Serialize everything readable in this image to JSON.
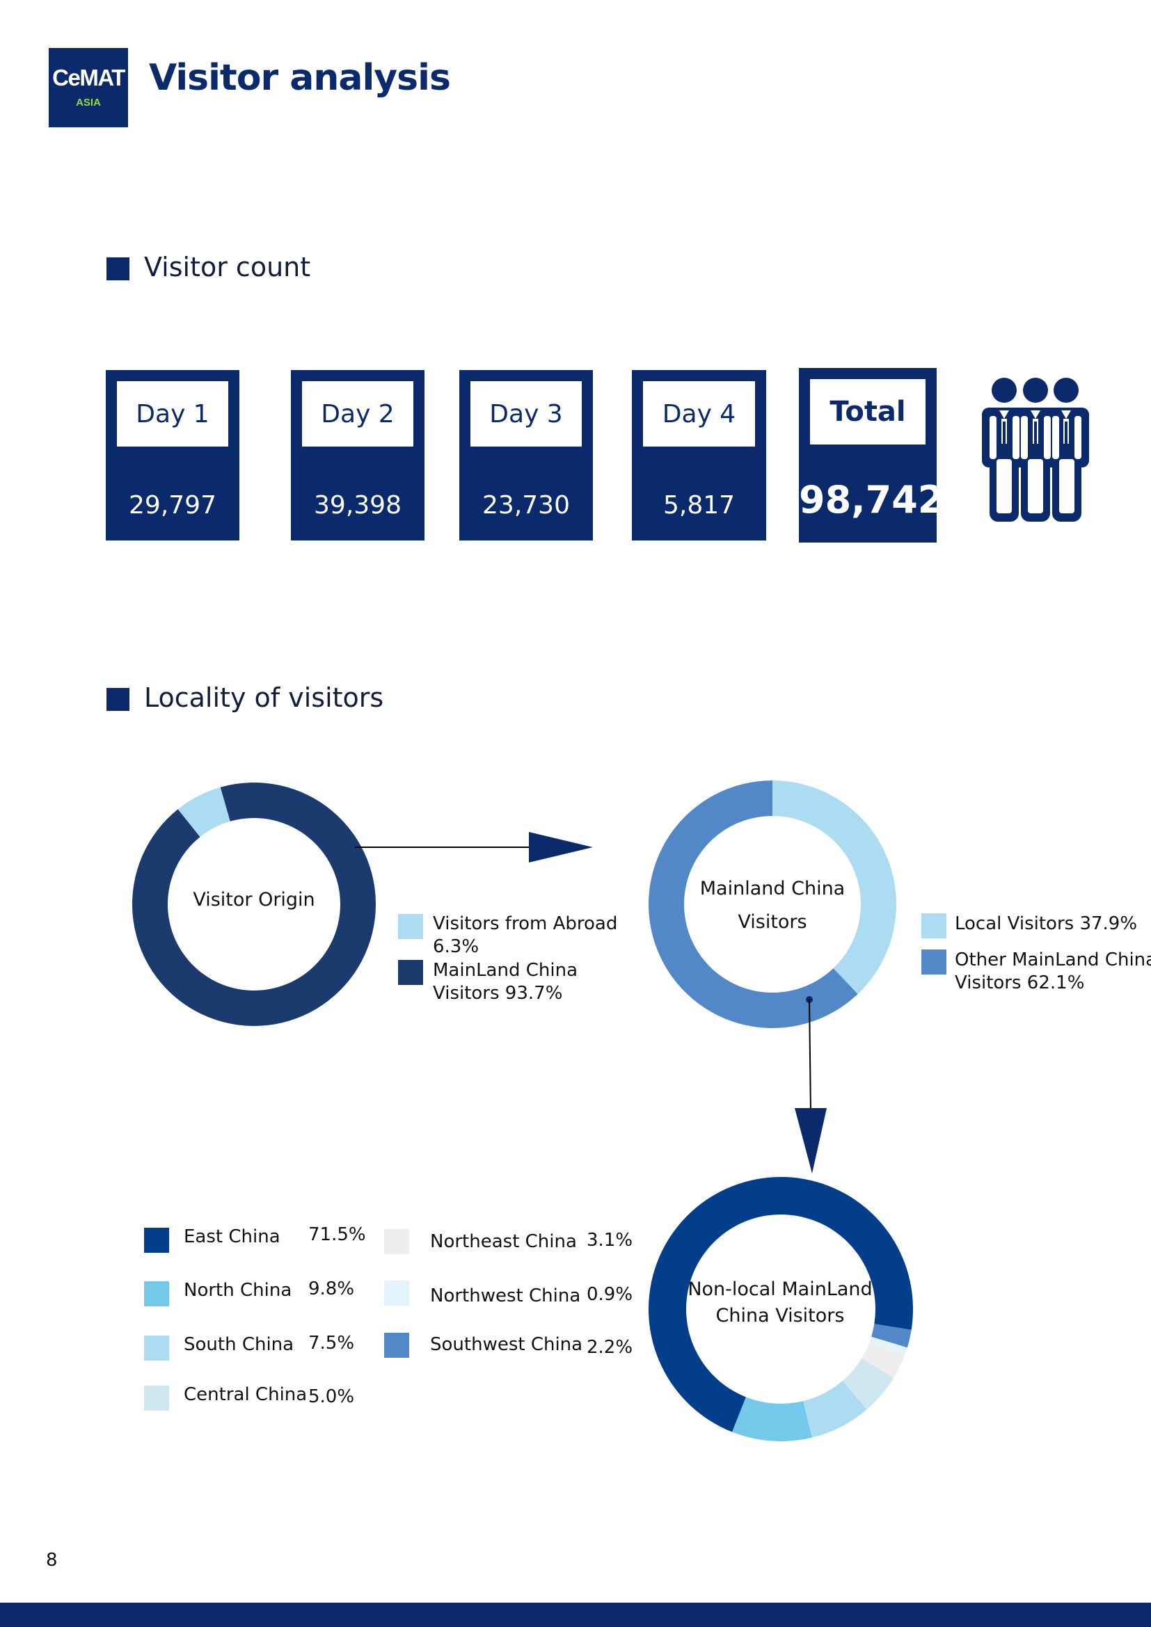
{
  "logo": {
    "text": "CeMAT",
    "subtext": "ASIA"
  },
  "page_title": "Visitor analysis",
  "sections": {
    "visitor_count": "Visitor count",
    "locality": "Locality of visitors"
  },
  "visitor_count": {
    "days": [
      {
        "label": "Day 1",
        "value": "29,797"
      },
      {
        "label": "Day 2",
        "value": "39,398"
      },
      {
        "label": "Day 3",
        "value": "23,730"
      },
      {
        "label": "Day 4",
        "value": "5,817"
      }
    ],
    "total": {
      "label": "Total",
      "value": "98,742"
    }
  },
  "colors": {
    "navy": "#0b2a6b",
    "abroad": "#abdcf1",
    "mainland": "#1b3a6e",
    "local": "#abdcf1",
    "other_mainland": "#5287c8",
    "east": "#023e8a",
    "north": "#74c9ea",
    "south": "#abdcf1",
    "central": "#cfe8ef",
    "northeast": "#eeeeee",
    "northwest": "#e2f3fb",
    "southwest": "#5287c8"
  },
  "icons": [
    "people-group-icon",
    "arrow-right-icon",
    "arrow-down-icon"
  ],
  "chart_data": [
    {
      "type": "pie",
      "title": "Visitor Origin",
      "categories": [
        "Visitors from Abroad",
        "MainLand China Visitors"
      ],
      "values": [
        6.3,
        93.7
      ],
      "legend": [
        {
          "line1": "Visitors from Abroad",
          "line2": "6.3%"
        },
        {
          "line1": "MainLand China",
          "line2": "Visitors 93.7%"
        }
      ]
    },
    {
      "type": "pie",
      "title_lines": [
        "Mainland China",
        "Visitors"
      ],
      "categories": [
        "Local Visitors",
        "Other MainLand China Visitors"
      ],
      "values": [
        37.9,
        62.1
      ],
      "legend": [
        {
          "line1": "Local Visitors 37.9%",
          "line2": ""
        },
        {
          "line1": "Other MainLand China",
          "line2": "Visitors 62.1%"
        }
      ]
    },
    {
      "type": "pie",
      "title_lines": [
        "Non-local MainLand",
        "China Visitors"
      ],
      "categories": [
        "East China",
        "North China",
        "South China",
        "Central China",
        "Northeast China",
        "Northwest China",
        "Southwest China"
      ],
      "values": [
        71.5,
        9.8,
        7.5,
        5.0,
        3.1,
        0.9,
        2.2
      ],
      "legend": [
        {
          "name": "East China",
          "pct": "71.5%"
        },
        {
          "name": "North China",
          "pct": "9.8%"
        },
        {
          "name": "South China",
          "pct": "7.5%"
        },
        {
          "name": "Central China",
          "pct": "5.0%"
        },
        {
          "name": "Northeast China",
          "pct": "3.1%"
        },
        {
          "name": "Northwest China",
          "pct": "0.9%"
        },
        {
          "name": "Southwest China",
          "pct": "2.2%"
        }
      ]
    }
  ],
  "page_number": "8"
}
